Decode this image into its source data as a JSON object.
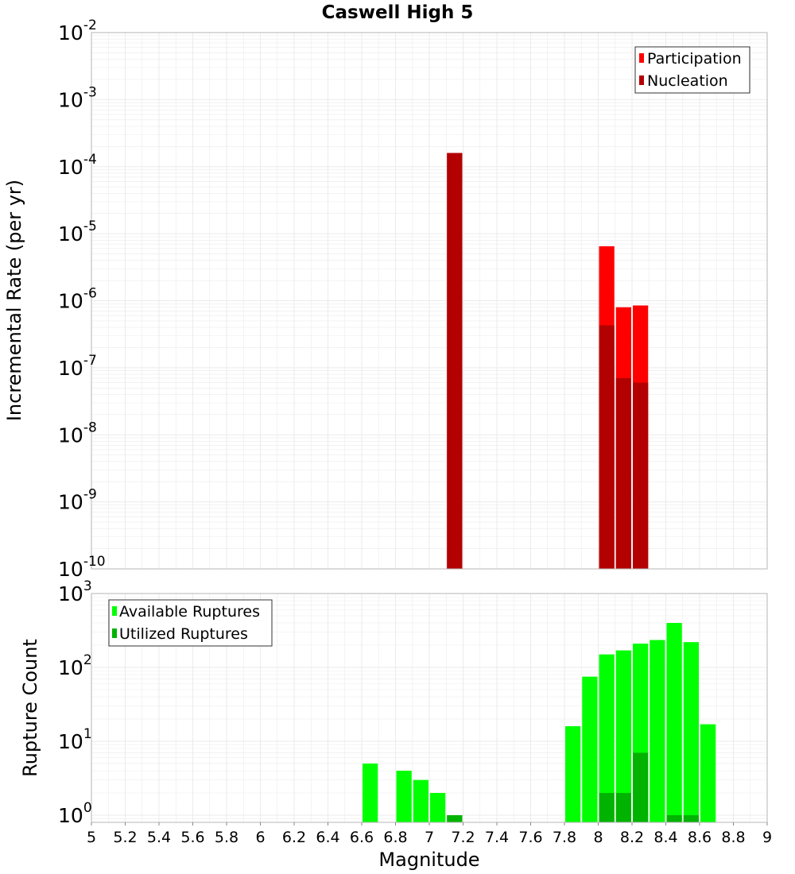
{
  "colors": {
    "participation": "#ff0000",
    "nucleation": "#b30000",
    "available": "#00ff00",
    "utilized": "#00b300",
    "grid": "#ebebeb",
    "frame": "#b4b4b4"
  },
  "chart_data": [
    {
      "type": "bar",
      "title": "Caswell High 5",
      "xlabel": "Magnitude",
      "ylabel": "Incremental Rate (per yr)",
      "yscale": "log",
      "xlim": [
        5,
        9
      ],
      "ylim": [
        1e-10,
        0.01
      ],
      "bin_width": 0.1,
      "y_tick_base": "10",
      "y_tick_exponents": [
        "-10",
        "-9",
        "-8",
        "-7",
        "-6",
        "-5",
        "-4",
        "-3",
        "-2"
      ],
      "legend": [
        "Participation",
        "Nucleation"
      ],
      "legend_position": "top-right",
      "series": [
        {
          "name": "Participation",
          "x": [
            7.15,
            8.05,
            8.15,
            8.25
          ],
          "values": [
            0.00016,
            6.5e-06,
            8e-07,
            8.5e-07
          ]
        },
        {
          "name": "Nucleation",
          "x": [
            7.15,
            8.05,
            8.15,
            8.25
          ],
          "values": [
            0.00016,
            4.3e-07,
            7e-08,
            6e-08
          ]
        }
      ]
    },
    {
      "type": "bar",
      "xlabel": "Magnitude",
      "ylabel": "Rupture Count",
      "yscale": "log",
      "xlim": [
        5,
        9
      ],
      "ylim": [
        0.8,
        1000
      ],
      "bin_width": 0.1,
      "x_ticks": [
        "5",
        "5.2",
        "5.4",
        "5.6",
        "5.8",
        "6",
        "6.2",
        "6.4",
        "6.6",
        "6.8",
        "7",
        "7.2",
        "7.4",
        "7.6",
        "7.8",
        "8",
        "8.2",
        "8.4",
        "8.6",
        "8.8",
        "9"
      ],
      "y_tick_base": "10",
      "y_tick_exponents": [
        "0",
        "1",
        "2",
        "3"
      ],
      "legend": [
        "Available Ruptures",
        "Utilized Ruptures"
      ],
      "legend_position": "top-left",
      "series": [
        {
          "name": "Available Ruptures",
          "x": [
            6.65,
            6.85,
            6.95,
            7.05,
            7.15,
            7.85,
            7.95,
            8.05,
            8.15,
            8.25,
            8.35,
            8.45,
            8.55,
            8.65
          ],
          "values": [
            5,
            4,
            3,
            2,
            1,
            16,
            75,
            150,
            170,
            210,
            235,
            400,
            220,
            17
          ]
        },
        {
          "name": "Utilized Ruptures",
          "x": [
            7.15,
            8.05,
            8.15,
            8.25,
            8.45,
            8.55
          ],
          "values": [
            1,
            2,
            2,
            7,
            1,
            1
          ]
        }
      ]
    }
  ]
}
